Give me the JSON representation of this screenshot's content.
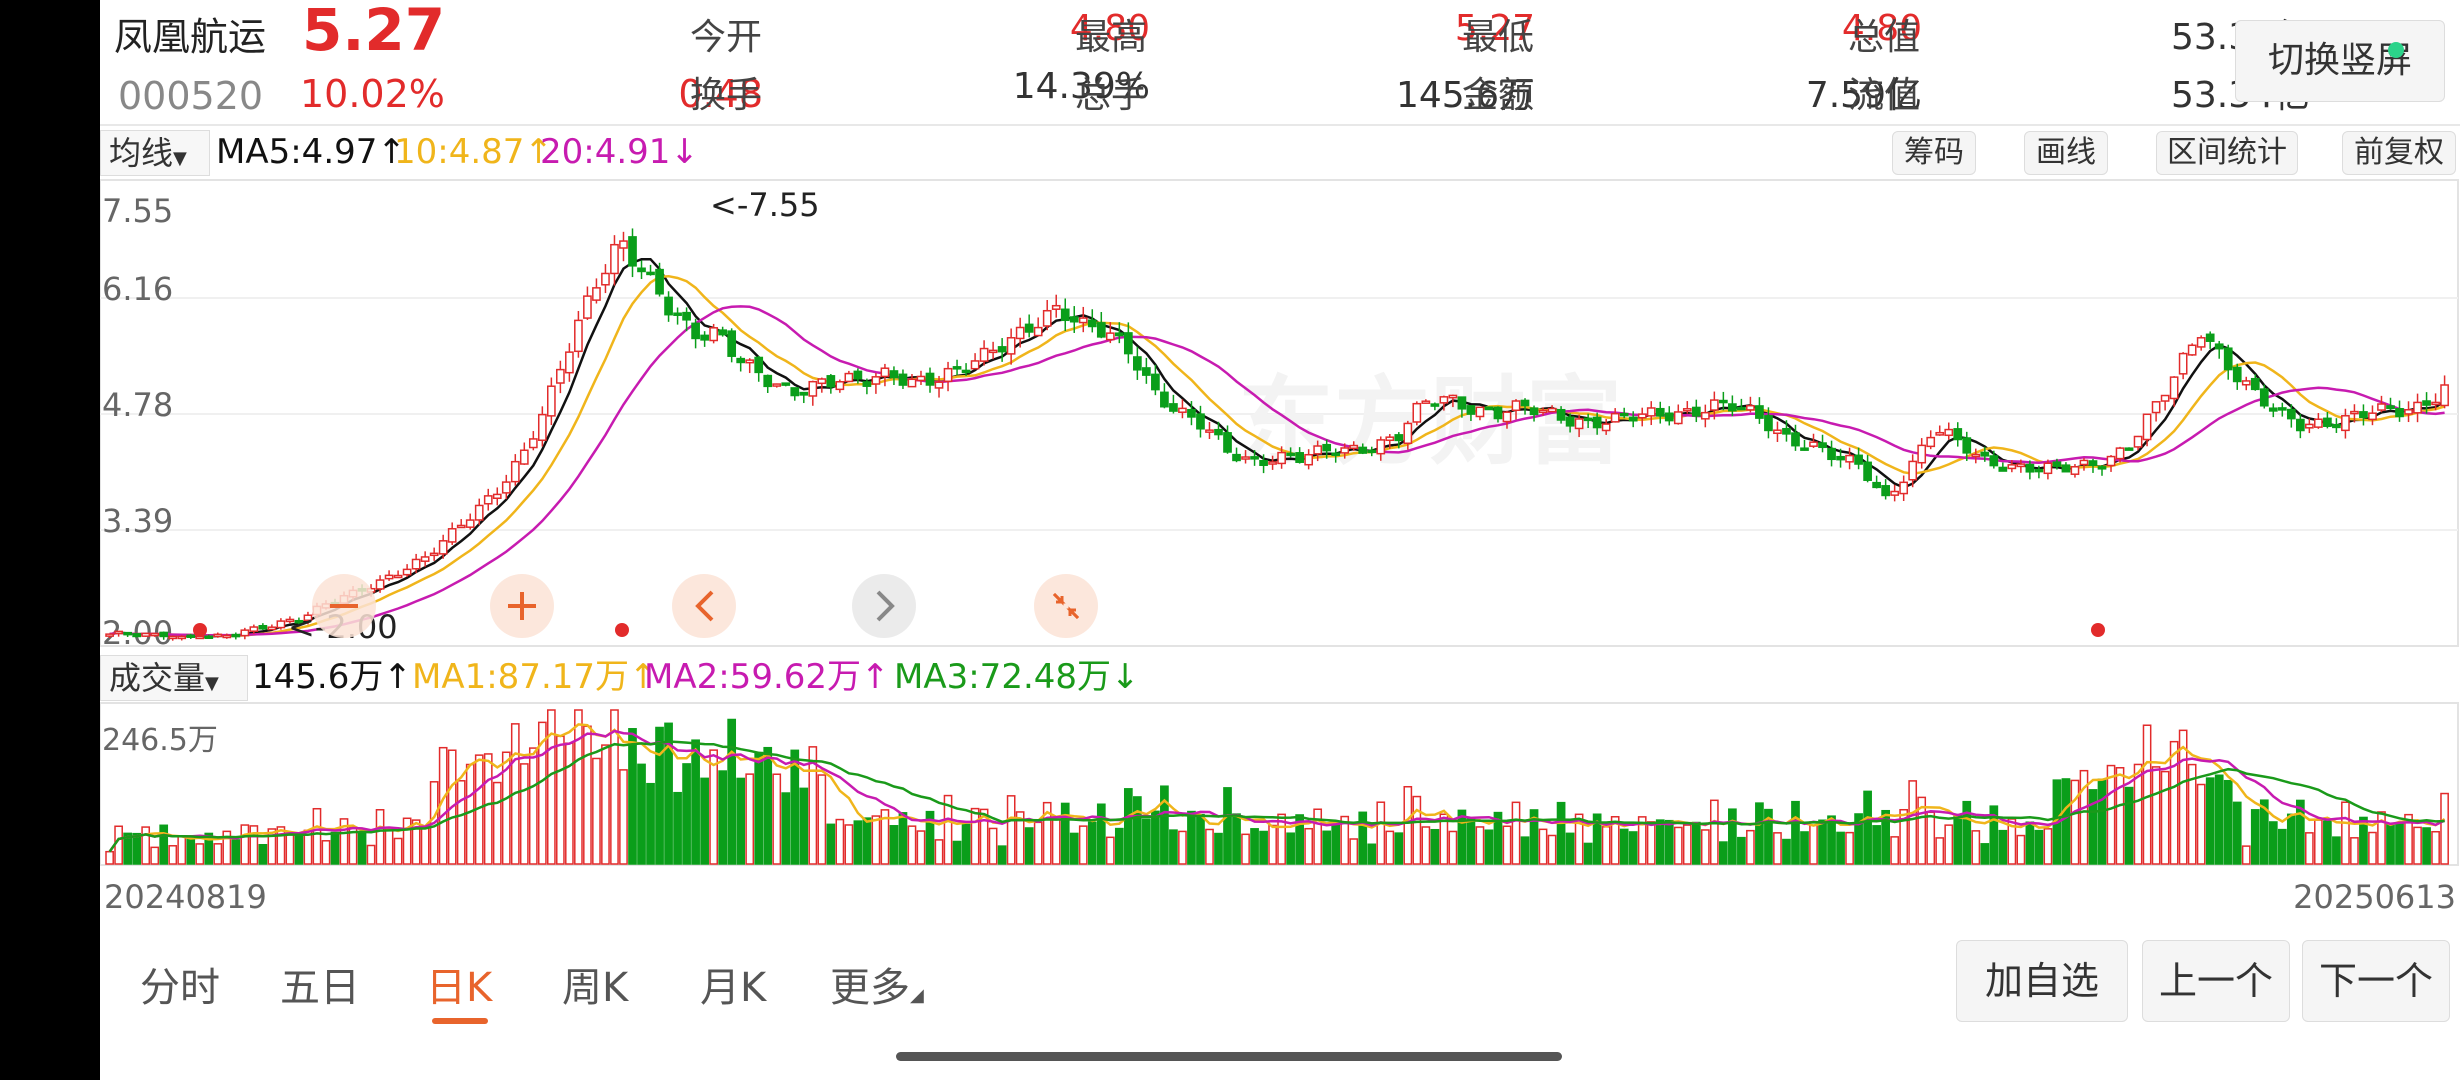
{
  "stock": {
    "name": "凤凰航运",
    "price": "5.27",
    "code": "000520",
    "change_pct": "10.02%",
    "change_amt": "0.48"
  },
  "quote": {
    "open_label": "今开",
    "open": "4.80",
    "high_label": "最高",
    "high": "5.27",
    "low_label": "最低",
    "low": "4.80",
    "mcap_label": "总值",
    "mcap": "53.34亿",
    "turnover_label": "换手",
    "turnover": "14.39%",
    "volume_label": "总手",
    "volume": "145.6万",
    "amount_label": "金额",
    "amount": "7.59亿",
    "float_label": "流值",
    "float": "53.34亿"
  },
  "switch_button": "切换竖屏",
  "ma_bar": {
    "selector": "均线",
    "ma5": "MA5:4.97↑",
    "ma10": "10:4.87↑",
    "ma20": "20:4.91↓"
  },
  "tools": [
    "筹码",
    "画线",
    "区间统计",
    "前复权"
  ],
  "price_axis": [
    "7.55",
    "6.16",
    "4.78",
    "3.39",
    "2.00"
  ],
  "annotations": {
    "high": "<-7.55",
    "low": "<-2.00"
  },
  "watermark": "东方财富",
  "vol_bar": {
    "selector": "成交量",
    "value": "145.6万↑",
    "ma1": "MA1:87.17万↑",
    "ma2": "MA2:59.62万↑",
    "ma3": "MA3:72.48万↓"
  },
  "vol_axis_max": "246.5万",
  "dates": {
    "start": "20240819",
    "end": "20250613"
  },
  "tabs": [
    "分时",
    "五日",
    "日K",
    "周K",
    "月K",
    "更多"
  ],
  "active_tab": "日K",
  "actions": [
    "加自选",
    "上一个",
    "下一个"
  ],
  "colors": {
    "up": "#e22b2b",
    "down": "#0a9e1a",
    "ma5": "#111111",
    "ma10": "#f0b51b",
    "ma20": "#c71bb0",
    "vol_ma3": "#1a9a1a",
    "accent": "#e8642c"
  },
  "chart_data": {
    "type": "candlestick",
    "date_range": [
      "20240819",
      "20250613"
    ],
    "price_ylim": [
      2.0,
      7.55
    ],
    "price_ticks": [
      7.55,
      6.16,
      4.78,
      3.39,
      2.0
    ],
    "period_high": 7.55,
    "period_low": 2.0,
    "close_trend": [
      2.05,
      2.03,
      2.02,
      2.01,
      2.0,
      2.03,
      2.1,
      2.2,
      2.3,
      2.45,
      2.55,
      2.7,
      2.9,
      3.05,
      3.3,
      3.6,
      3.95,
      4.4,
      5.0,
      5.8,
      6.6,
      7.2,
      6.7,
      6.2,
      5.9,
      6.0,
      5.6,
      5.3,
      5.1,
      5.3,
      5.4,
      5.3,
      5.35,
      5.3,
      5.4,
      5.5,
      5.6,
      5.8,
      6.1,
      6.3,
      6.0,
      5.9,
      5.7,
      5.2,
      4.9,
      4.7,
      4.4,
      4.3,
      4.35,
      4.3,
      4.4,
      4.45,
      4.5,
      4.6,
      5.0,
      5.1,
      5.0,
      4.9,
      4.95,
      4.9,
      4.85,
      4.8,
      4.8,
      4.85,
      4.9,
      4.95,
      5.0,
      4.95,
      4.8,
      4.6,
      4.5,
      4.3,
      4.2,
      3.8,
      4.2,
      4.7,
      4.5,
      4.3,
      4.25,
      4.2,
      4.15,
      4.2,
      4.3,
      4.5,
      4.9,
      5.4,
      6.0,
      5.6,
      5.2,
      4.9,
      4.75,
      4.8,
      4.85,
      4.9,
      4.9,
      5.0,
      5.27
    ],
    "volume_max": "246.5万",
    "series": [
      {
        "name": "MA5",
        "last": 4.97
      },
      {
        "name": "MA10",
        "last": 4.87
      },
      {
        "name": "MA20",
        "last": 4.91
      }
    ],
    "volume_series": [
      {
        "name": "MA1",
        "last": "87.17万"
      },
      {
        "name": "MA2",
        "last": "59.62万"
      },
      {
        "name": "MA3",
        "last": "72.48万"
      }
    ]
  }
}
